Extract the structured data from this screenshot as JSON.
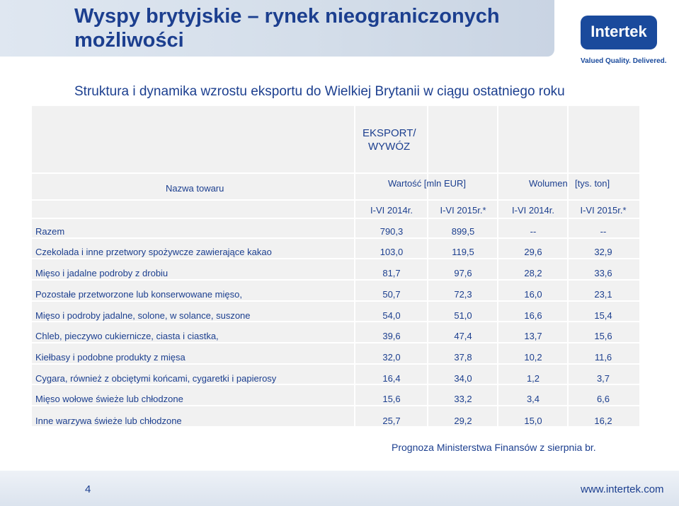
{
  "header": {
    "title": "Wyspy brytyjskie – rynek nieograniczonych możliwości",
    "logo_text": "Intertek",
    "tagline": "Valued Quality. Delivered."
  },
  "subtitle": "Struktura i dynamika wzrostu eksportu do Wielkiej Brytanii w ciągu ostatniego roku",
  "table": {
    "group_header_line1": "EKSPORT/",
    "group_header_line2": "WYWÓZ",
    "col_name_header": "Nazwa towaru",
    "value_header": "Wartość [mln EUR]",
    "volume_header": "Wolumen",
    "volume_unit": "[tys. ton]",
    "periods": [
      "I-VI 2014r.",
      "I-VI 2015r.*",
      "I-VI 2014r.",
      "I-VI 2015r.*"
    ],
    "rows": [
      {
        "name": "Razem",
        "v2014": "790,3",
        "v2015": "899,5",
        "w2014": "--",
        "w2015": "--"
      },
      {
        "name": "Czekolada i inne przetwory spożywcze zawierające kakao",
        "v2014": "103,0",
        "v2015": "119,5",
        "w2014": "29,6",
        "w2015": "32,9"
      },
      {
        "name": "Mięso i jadalne podroby z drobiu",
        "v2014": "81,7",
        "v2015": "97,6",
        "w2014": "28,2",
        "w2015": "33,6"
      },
      {
        "name": "Pozostałe przetworzone lub konserwowane mięso,",
        "v2014": "50,7",
        "v2015": "72,3",
        "w2014": "16,0",
        "w2015": "23,1"
      },
      {
        "name": "Mięso i podroby jadalne, solone, w solance, suszone",
        "v2014": "54,0",
        "v2015": "51,0",
        "w2014": "16,6",
        "w2015": "15,4"
      },
      {
        "name": "Chleb, pieczywo cukiernicze, ciasta i ciastka,",
        "v2014": "39,6",
        "v2015": "47,4",
        "w2014": "13,7",
        "w2015": "15,6"
      },
      {
        "name": "Kiełbasy i podobne produkty z mięsa",
        "v2014": "32,0",
        "v2015": "37,8",
        "w2014": "10,2",
        "w2015": "11,6"
      },
      {
        "name": "Cygara, również z obciętymi końcami, cygaretki i papierosy",
        "v2014": "16,4",
        "v2015": "34,0",
        "w2014": "1,2",
        "w2015": "3,7"
      },
      {
        "name": "Mięso wołowe świeże lub chłodzone",
        "v2014": "15,6",
        "v2015": "33,2",
        "w2014": "3,4",
        "w2015": "6,6"
      },
      {
        "name": "Inne warzywa świeże lub chłodzone",
        "v2014": "25,7",
        "v2015": "29,2",
        "w2014": "15,0",
        "w2015": "16,2"
      }
    ]
  },
  "footnote": "Prognoza Ministerstwa Finansów z sierpnia br.",
  "footer": {
    "page_number": "4",
    "website": "www.intertek.com"
  },
  "colors": {
    "text": "#1c3f8f",
    "table_bg": "#f1f1f1",
    "logo_bg": "#1a4a9c"
  }
}
